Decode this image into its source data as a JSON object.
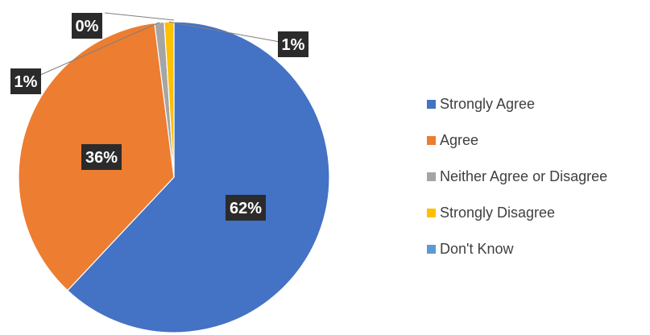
{
  "chart_data": {
    "type": "pie",
    "slices": [
      {
        "name": "Strongly Agree",
        "value": 62,
        "label": "62%",
        "color": "#4472C4"
      },
      {
        "name": "Agree",
        "value": 36,
        "label": "36%",
        "color": "#ED7D31"
      },
      {
        "name": "Neither Agree or Disagree",
        "value": 1,
        "label": "1%",
        "color": "#A5A5A5"
      },
      {
        "name": "Strongly Disagree",
        "value": 1,
        "label": "1%",
        "color": "#FFC000"
      },
      {
        "name": "Don't Know",
        "value": 0,
        "label": "0%",
        "color": "#5B9BD5"
      }
    ],
    "legend_position": "right",
    "label_style": {
      "background": "#2b2b2b",
      "text_color": "#ffffff"
    }
  }
}
